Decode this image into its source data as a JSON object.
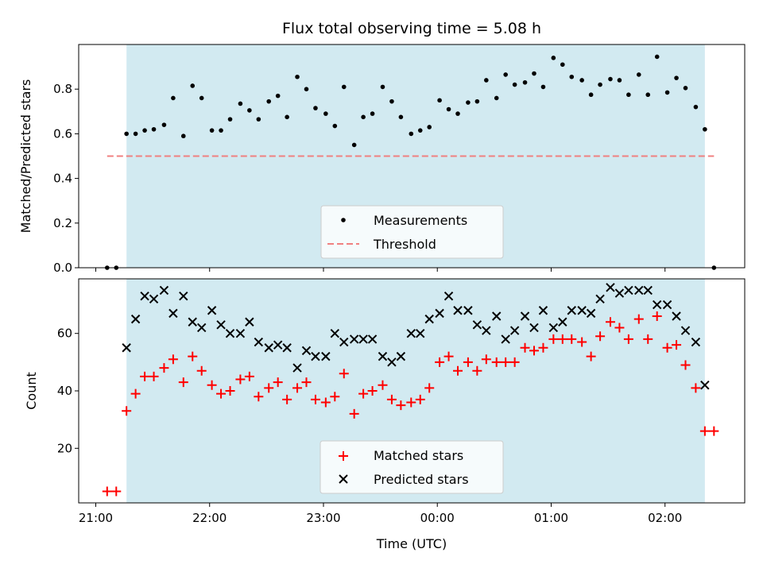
{
  "chart_data": [
    {
      "type": "scatter",
      "title": "Flux total observing time = 5.08 h",
      "xlabel": "",
      "ylabel": "Matched/Predicted stars",
      "xlim_hours": [
        20.85,
        26.7
      ],
      "ylim": [
        0,
        1.0
      ],
      "yticks": [
        0.0,
        0.2,
        0.4,
        0.6,
        0.8
      ],
      "ytick_labels": [
        "0.0",
        "0.2",
        "0.4",
        "0.6",
        "0.8"
      ],
      "shaded_span_hours": [
        21.27,
        26.35
      ],
      "shade_color": "#add8e6",
      "legend_position": "lower center",
      "series": [
        {
          "name": "Measurements",
          "marker": "dot",
          "color": "#000000",
          "x_hours": [
            21.1,
            21.18,
            21.27,
            21.35,
            21.43,
            21.51,
            21.6,
            21.68,
            21.77,
            21.85,
            21.93,
            22.02,
            22.1,
            22.18,
            22.27,
            22.35,
            22.43,
            22.52,
            22.6,
            22.68,
            22.77,
            22.85,
            22.93,
            23.02,
            23.1,
            23.18,
            23.27,
            23.35,
            23.43,
            23.52,
            23.6,
            23.68,
            23.77,
            23.85,
            23.93,
            24.02,
            24.1,
            24.18,
            24.27,
            24.35,
            24.43,
            24.52,
            24.6,
            24.68,
            24.77,
            24.85,
            24.93,
            25.02,
            25.1,
            25.18,
            25.27,
            25.35,
            25.43,
            25.52,
            25.6,
            25.68,
            25.77,
            25.85,
            25.93,
            26.02,
            26.1,
            26.18,
            26.27,
            26.35,
            26.43
          ],
          "y": [
            0.0,
            0.0,
            0.6,
            0.6,
            0.615,
            0.62,
            0.64,
            0.76,
            0.59,
            0.815,
            0.76,
            0.615,
            0.615,
            0.665,
            0.735,
            0.705,
            0.665,
            0.745,
            0.77,
            0.675,
            0.855,
            0.8,
            0.715,
            0.69,
            0.635,
            0.81,
            0.55,
            0.675,
            0.69,
            0.81,
            0.745,
            0.675,
            0.6,
            0.615,
            0.63,
            0.75,
            0.71,
            0.69,
            0.74,
            0.745,
            0.84,
            0.76,
            0.865,
            0.82,
            0.83,
            0.87,
            0.81,
            0.94,
            0.91,
            0.855,
            0.84,
            0.775,
            0.82,
            0.845,
            0.84,
            0.775,
            0.865,
            0.775,
            0.945,
            0.785,
            0.85,
            0.805,
            0.72,
            0.62,
            0.0
          ]
        },
        {
          "name": "Threshold",
          "type": "dashed-line",
          "color": "#f08080",
          "x_hours": [
            21.1,
            26.43
          ],
          "y": [
            0.5,
            0.5
          ]
        }
      ]
    },
    {
      "type": "scatter",
      "title": "",
      "xlabel": "Time (UTC)",
      "ylabel": "Count",
      "xlim_hours": [
        20.85,
        26.7
      ],
      "ylim": [
        1,
        79
      ],
      "yticks": [
        20,
        40,
        60
      ],
      "ytick_labels": [
        "20",
        "40",
        "60"
      ],
      "xticks_hours": [
        21,
        22,
        23,
        24,
        25,
        26
      ],
      "xtick_labels": [
        "21:00",
        "22:00",
        "23:00",
        "00:00",
        "01:00",
        "02:00"
      ],
      "shaded_span_hours": [
        21.27,
        26.35
      ],
      "shade_color": "#add8e6",
      "legend_position": "lower center",
      "series": [
        {
          "name": "Matched stars",
          "marker": "plus",
          "color": "#ff0000",
          "x_hours": [
            21.1,
            21.18,
            21.27,
            21.35,
            21.43,
            21.51,
            21.6,
            21.68,
            21.77,
            21.85,
            21.93,
            22.02,
            22.1,
            22.18,
            22.27,
            22.35,
            22.43,
            22.52,
            22.6,
            22.68,
            22.77,
            22.85,
            22.93,
            23.02,
            23.1,
            23.18,
            23.27,
            23.35,
            23.43,
            23.52,
            23.6,
            23.68,
            23.77,
            23.85,
            23.93,
            24.02,
            24.1,
            24.18,
            24.27,
            24.35,
            24.43,
            24.52,
            24.6,
            24.68,
            24.77,
            24.85,
            24.93,
            25.02,
            25.1,
            25.18,
            25.27,
            25.35,
            25.43,
            25.52,
            25.6,
            25.68,
            25.77,
            25.85,
            25.93,
            26.02,
            26.1,
            26.18,
            26.27,
            26.35,
            26.43
          ],
          "y": [
            5,
            5,
            33,
            39,
            45,
            45,
            48,
            51,
            43,
            52,
            47,
            42,
            39,
            40,
            44,
            45,
            38,
            41,
            43,
            37,
            41,
            43,
            37,
            36,
            38,
            46,
            32,
            39,
            40,
            42,
            37,
            35,
            36,
            37,
            41,
            50,
            52,
            47,
            50,
            47,
            51,
            50,
            50,
            50,
            55,
            54,
            55,
            58,
            58,
            58,
            57,
            52,
            59,
            64,
            62,
            58,
            65,
            58,
            66,
            55,
            56,
            49,
            41,
            26,
            26
          ]
        },
        {
          "name": "Predicted stars",
          "marker": "x",
          "color": "#000000",
          "x_hours": [
            21.27,
            21.35,
            21.43,
            21.51,
            21.6,
            21.68,
            21.77,
            21.85,
            21.93,
            22.02,
            22.1,
            22.18,
            22.27,
            22.35,
            22.43,
            22.52,
            22.6,
            22.68,
            22.77,
            22.85,
            22.93,
            23.02,
            23.1,
            23.18,
            23.27,
            23.35,
            23.43,
            23.52,
            23.6,
            23.68,
            23.77,
            23.85,
            23.93,
            24.02,
            24.1,
            24.18,
            24.27,
            24.35,
            24.43,
            24.52,
            24.6,
            24.68,
            24.77,
            24.85,
            24.93,
            25.02,
            25.1,
            25.18,
            25.27,
            25.35,
            25.43,
            25.52,
            25.6,
            25.68,
            25.77,
            25.85,
            25.93,
            26.02,
            26.1,
            26.18,
            26.27,
            26.35
          ],
          "y": [
            55,
            65,
            73,
            72,
            75,
            67,
            73,
            64,
            62,
            68,
            63,
            60,
            60,
            64,
            57,
            55,
            56,
            55,
            48,
            54,
            52,
            52,
            60,
            57,
            58,
            58,
            58,
            52,
            50,
            52,
            60,
            60,
            65,
            67,
            73,
            68,
            68,
            63,
            61,
            66,
            58,
            61,
            66,
            62,
            68,
            62,
            64,
            68,
            68,
            67,
            72,
            76,
            74,
            75,
            75,
            75,
            70,
            70,
            66,
            61,
            57,
            42
          ]
        }
      ]
    }
  ]
}
